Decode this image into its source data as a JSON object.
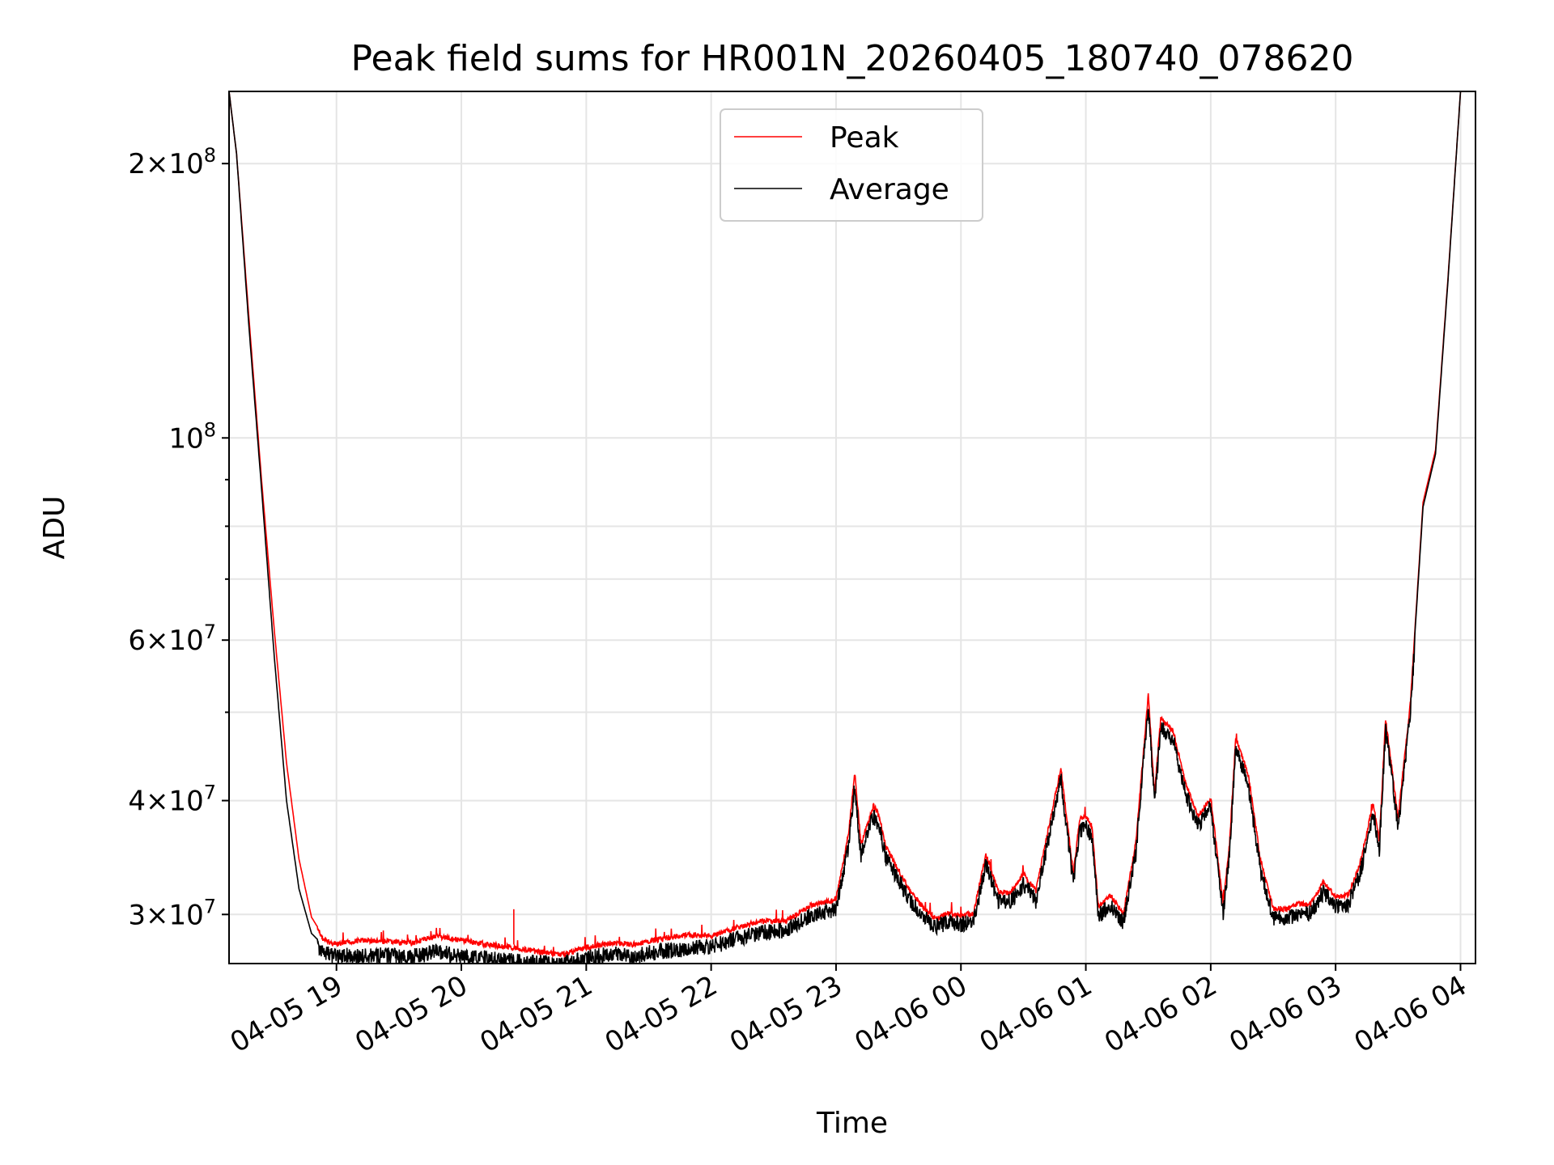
{
  "chart_data": {
    "type": "line",
    "title": "Peak field sums for HR001N_20260405_180740_078620",
    "xlabel": "Time",
    "ylabel": "ADU",
    "yscale": "log",
    "ylim": [
      26500000,
      240000000
    ],
    "xlim_hours_since_2026-04-05T18:00": [
      0.14,
      10.12
    ],
    "grid": true,
    "legend_position": "upper center",
    "x_ticks": [
      {
        "hour": 1,
        "label": "04-05 19"
      },
      {
        "hour": 2,
        "label": "04-05 20"
      },
      {
        "hour": 3,
        "label": "04-05 21"
      },
      {
        "hour": 4,
        "label": "04-05 22"
      },
      {
        "hour": 5,
        "label": "04-05 23"
      },
      {
        "hour": 6,
        "label": "04-06 00"
      },
      {
        "hour": 7,
        "label": "04-06 01"
      },
      {
        "hour": 8,
        "label": "04-06 02"
      },
      {
        "hour": 9,
        "label": "04-06 03"
      },
      {
        "hour": 10,
        "label": "04-06 04"
      }
    ],
    "y_ticks": [
      {
        "value": 30000000,
        "mantissa": "3",
        "exponent": "7",
        "grid": true
      },
      {
        "value": 40000000,
        "mantissa": "4",
        "exponent": "7",
        "grid": true
      },
      {
        "value": 50000000,
        "mantissa": "",
        "exponent": "",
        "grid": true
      },
      {
        "value": 60000000,
        "mantissa": "6",
        "exponent": "7",
        "grid": true
      },
      {
        "value": 70000000,
        "mantissa": "",
        "exponent": "",
        "grid": true
      },
      {
        "value": 80000000,
        "mantissa": "",
        "exponent": "",
        "grid": true
      },
      {
        "value": 90000000,
        "mantissa": "",
        "exponent": "",
        "grid": false
      },
      {
        "value": 100000000,
        "mantissa": "",
        "exponent": "8",
        "grid": true
      },
      {
        "value": 200000000,
        "mantissa": "2",
        "exponent": "8",
        "grid": true
      }
    ],
    "series": [
      {
        "name": "Peak",
        "color": "#ff0000",
        "x_hours": [
          0.14,
          0.2,
          0.3,
          0.4,
          0.5,
          0.6,
          0.7,
          0.8,
          0.9,
          1.0,
          1.2,
          1.4,
          1.6,
          1.8,
          2.0,
          2.2,
          2.4,
          2.6,
          2.8,
          3.0,
          3.2,
          3.4,
          3.6,
          3.8,
          4.0,
          4.2,
          4.4,
          4.6,
          4.8,
          5.0,
          5.1,
          5.15,
          5.2,
          5.3,
          5.35,
          5.4,
          5.5,
          5.6,
          5.7,
          5.8,
          5.9,
          6.0,
          6.1,
          6.2,
          6.3,
          6.4,
          6.5,
          6.6,
          6.7,
          6.8,
          6.9,
          6.95,
          7.0,
          7.05,
          7.1,
          7.2,
          7.3,
          7.4,
          7.5,
          7.55,
          7.6,
          7.7,
          7.8,
          7.9,
          8.0,
          8.1,
          8.15,
          8.2,
          8.3,
          8.4,
          8.5,
          8.6,
          8.7,
          8.8,
          8.9,
          9.0,
          9.1,
          9.2,
          9.3,
          9.35,
          9.4,
          9.5,
          9.6,
          9.7,
          9.8,
          9.9,
          10.0,
          10.12
        ],
        "values": [
          240000000,
          205000000,
          135000000,
          90000000,
          62000000,
          44000000,
          34500000,
          29800000,
          28300000,
          28000000,
          28300000,
          28200000,
          28100000,
          28600000,
          28300000,
          28000000,
          27800000,
          27500000,
          27300000,
          27800000,
          28100000,
          28000000,
          28400000,
          28700000,
          28600000,
          29200000,
          29700000,
          29700000,
          30900000,
          31400000,
          37000000,
          43200000,
          36000000,
          39800000,
          38600000,
          35800000,
          33800000,
          31900000,
          30700000,
          29900000,
          30300000,
          30100000,
          30300000,
          35200000,
          32000000,
          31900000,
          33500000,
          32000000,
          37500000,
          43700000,
          33500000,
          38400000,
          38700000,
          37700000,
          30800000,
          31700000,
          30200000,
          36200000,
          52600000,
          41000000,
          49600000,
          48000000,
          42000000,
          38700000,
          40600000,
          31000000,
          36000000,
          47200000,
          43000000,
          34600000,
          30700000,
          30600000,
          31000000,
          31000000,
          32800000,
          31600000,
          31700000,
          34500000,
          40000000,
          36400000,
          49500000,
          38600000,
          51800000,
          85000000,
          97000000,
          150000000,
          240000000,
          240000000
        ]
      },
      {
        "name": "Average",
        "color": "#000000",
        "x_hours": [
          0.14,
          0.2,
          0.3,
          0.4,
          0.5,
          0.6,
          0.7,
          0.8,
          0.9,
          1.0,
          1.2,
          1.4,
          1.6,
          1.8,
          2.0,
          2.2,
          2.4,
          2.6,
          2.8,
          3.0,
          3.2,
          3.4,
          3.6,
          3.8,
          4.0,
          4.2,
          4.4,
          4.6,
          4.8,
          5.0,
          5.1,
          5.15,
          5.2,
          5.3,
          5.35,
          5.4,
          5.5,
          5.6,
          5.7,
          5.8,
          5.9,
          6.0,
          6.1,
          6.2,
          6.3,
          6.4,
          6.5,
          6.6,
          6.7,
          6.8,
          6.9,
          6.95,
          7.0,
          7.05,
          7.1,
          7.2,
          7.3,
          7.4,
          7.5,
          7.55,
          7.6,
          7.7,
          7.8,
          7.9,
          8.0,
          8.1,
          8.15,
          8.2,
          8.3,
          8.4,
          8.5,
          8.6,
          8.7,
          8.8,
          8.9,
          9.0,
          9.1,
          9.2,
          9.3,
          9.35,
          9.4,
          9.5,
          9.6,
          9.7,
          9.8,
          9.9,
          10.0,
          10.12
        ],
        "values": [
          240000000,
          205000000,
          132000000,
          88000000,
          58000000,
          40000000,
          32000000,
          28600000,
          27700000,
          27600000,
          27600000,
          27600000,
          27500000,
          27900000,
          27500000,
          27400000,
          27200000,
          27100000,
          27000000,
          27400000,
          27700000,
          27600000,
          27900000,
          28100000,
          28200000,
          28800000,
          29300000,
          29400000,
          30600000,
          31000000,
          36500000,
          42500000,
          35500000,
          39300000,
          38200000,
          35300000,
          33400000,
          31600000,
          30400000,
          29700000,
          30000000,
          29900000,
          30000000,
          34700000,
          31700000,
          31600000,
          33100000,
          31700000,
          37000000,
          43300000,
          33100000,
          37900000,
          38200000,
          37200000,
          30500000,
          31400000,
          30000000,
          35700000,
          52200000,
          40600000,
          49100000,
          47500000,
          41600000,
          38300000,
          40200000,
          30700000,
          35600000,
          46800000,
          42500000,
          34200000,
          30400000,
          30300000,
          30700000,
          30700000,
          32400000,
          31300000,
          31400000,
          34100000,
          39600000,
          36000000,
          49000000,
          38200000,
          51300000,
          84000000,
          96000000,
          149000000,
          240000000,
          240000000
        ]
      }
    ]
  }
}
